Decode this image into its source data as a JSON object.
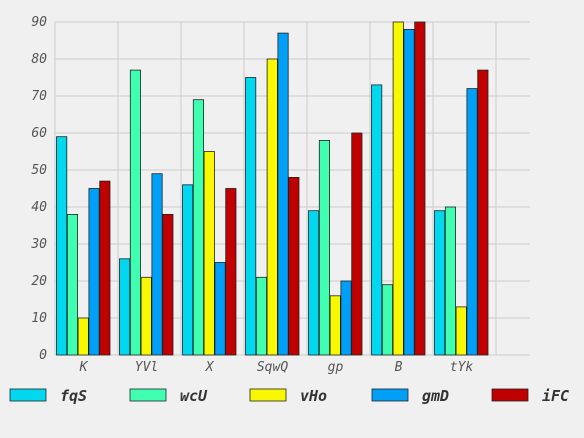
{
  "chart_data": {
    "type": "bar",
    "title": "",
    "xlabel": "",
    "ylabel": "",
    "categories": [
      "K",
      "YVl",
      "X",
      "SqwQ",
      "gp",
      "B",
      "tYk"
    ],
    "ylim": [
      0,
      90
    ],
    "yticks": [
      0,
      10,
      20,
      30,
      40,
      50,
      60,
      70,
      80,
      90
    ],
    "grid": true,
    "legend_position": "bottom",
    "series": [
      {
        "name": "fqS",
        "color": "#00d8f0",
        "values": [
          59,
          26,
          46,
          75,
          39,
          73,
          39
        ]
      },
      {
        "name": "wcU",
        "color": "#40ffb0",
        "values": [
          38,
          77,
          69,
          21,
          58,
          19,
          40
        ]
      },
      {
        "name": "vHo",
        "color": "#f8f800",
        "values": [
          10,
          21,
          55,
          80,
          16,
          90,
          13
        ]
      },
      {
        "name": "gmD",
        "color": "#00a0f8",
        "values": [
          45,
          49,
          25,
          87,
          20,
          88,
          72
        ]
      },
      {
        "name": "iFC",
        "color": "#c00000",
        "values": [
          47,
          38,
          45,
          48,
          60,
          90,
          77
        ]
      }
    ]
  }
}
